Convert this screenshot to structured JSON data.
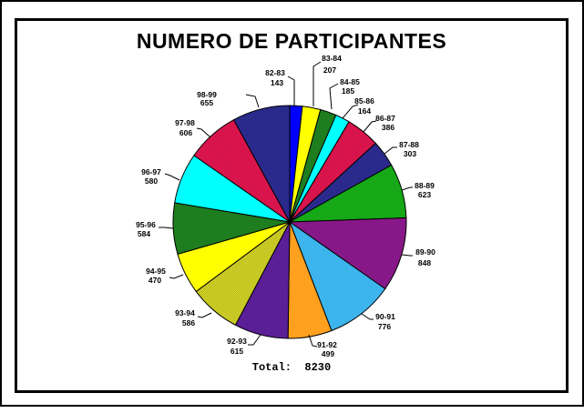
{
  "chart": {
    "title": "NUMERO DE PARTICIPANTES",
    "total_text": "Total:  8230"
  },
  "chart_data": {
    "type": "pie",
    "title": "NUMERO DE PARTICIPANTES",
    "total": 8230,
    "total_text": "Total:  8230",
    "start_angle_deg": 0,
    "direction": "clockwise",
    "legend_position": "around-slices",
    "slices": [
      {
        "label": "82-83",
        "value": 143,
        "color": "#0000FF"
      },
      {
        "label": "83-84",
        "value": 207,
        "color": "#FFFF00"
      },
      {
        "label": "84-85",
        "value": 185,
        "color": "#1E7D1E"
      },
      {
        "label": "85-86",
        "value": 164,
        "color": "#00FFFF"
      },
      {
        "label": "86-87",
        "value": 386,
        "color": "#F01858",
        "dither": "#C01040"
      },
      {
        "label": "87-88",
        "value": 303,
        "color": "#2A2A8C"
      },
      {
        "label": "88-89",
        "value": 623,
        "color": "#16A816"
      },
      {
        "label": "89-90",
        "value": 848,
        "color": "#871887"
      },
      {
        "label": "90-91",
        "value": 776,
        "color": "#29A8E8",
        "dither": "#4FC0F0"
      },
      {
        "label": "91-92",
        "value": 499,
        "color": "#FFA01E"
      },
      {
        "label": "92-93",
        "value": 615,
        "color": "#5A1E96"
      },
      {
        "label": "93-94",
        "value": 586,
        "color": "#B8B818",
        "dither": "#D8D830"
      },
      {
        "label": "94-95",
        "value": 470,
        "color": "#FFFF00"
      },
      {
        "label": "95-96",
        "value": 584,
        "color": "#1E7D1E"
      },
      {
        "label": "96-97",
        "value": 580,
        "color": "#00FFFF"
      },
      {
        "label": "97-98",
        "value": 606,
        "color": "#F01858",
        "dither": "#C01040"
      },
      {
        "label": "98-99",
        "value": 655,
        "color": "#2A2A8C"
      }
    ]
  }
}
